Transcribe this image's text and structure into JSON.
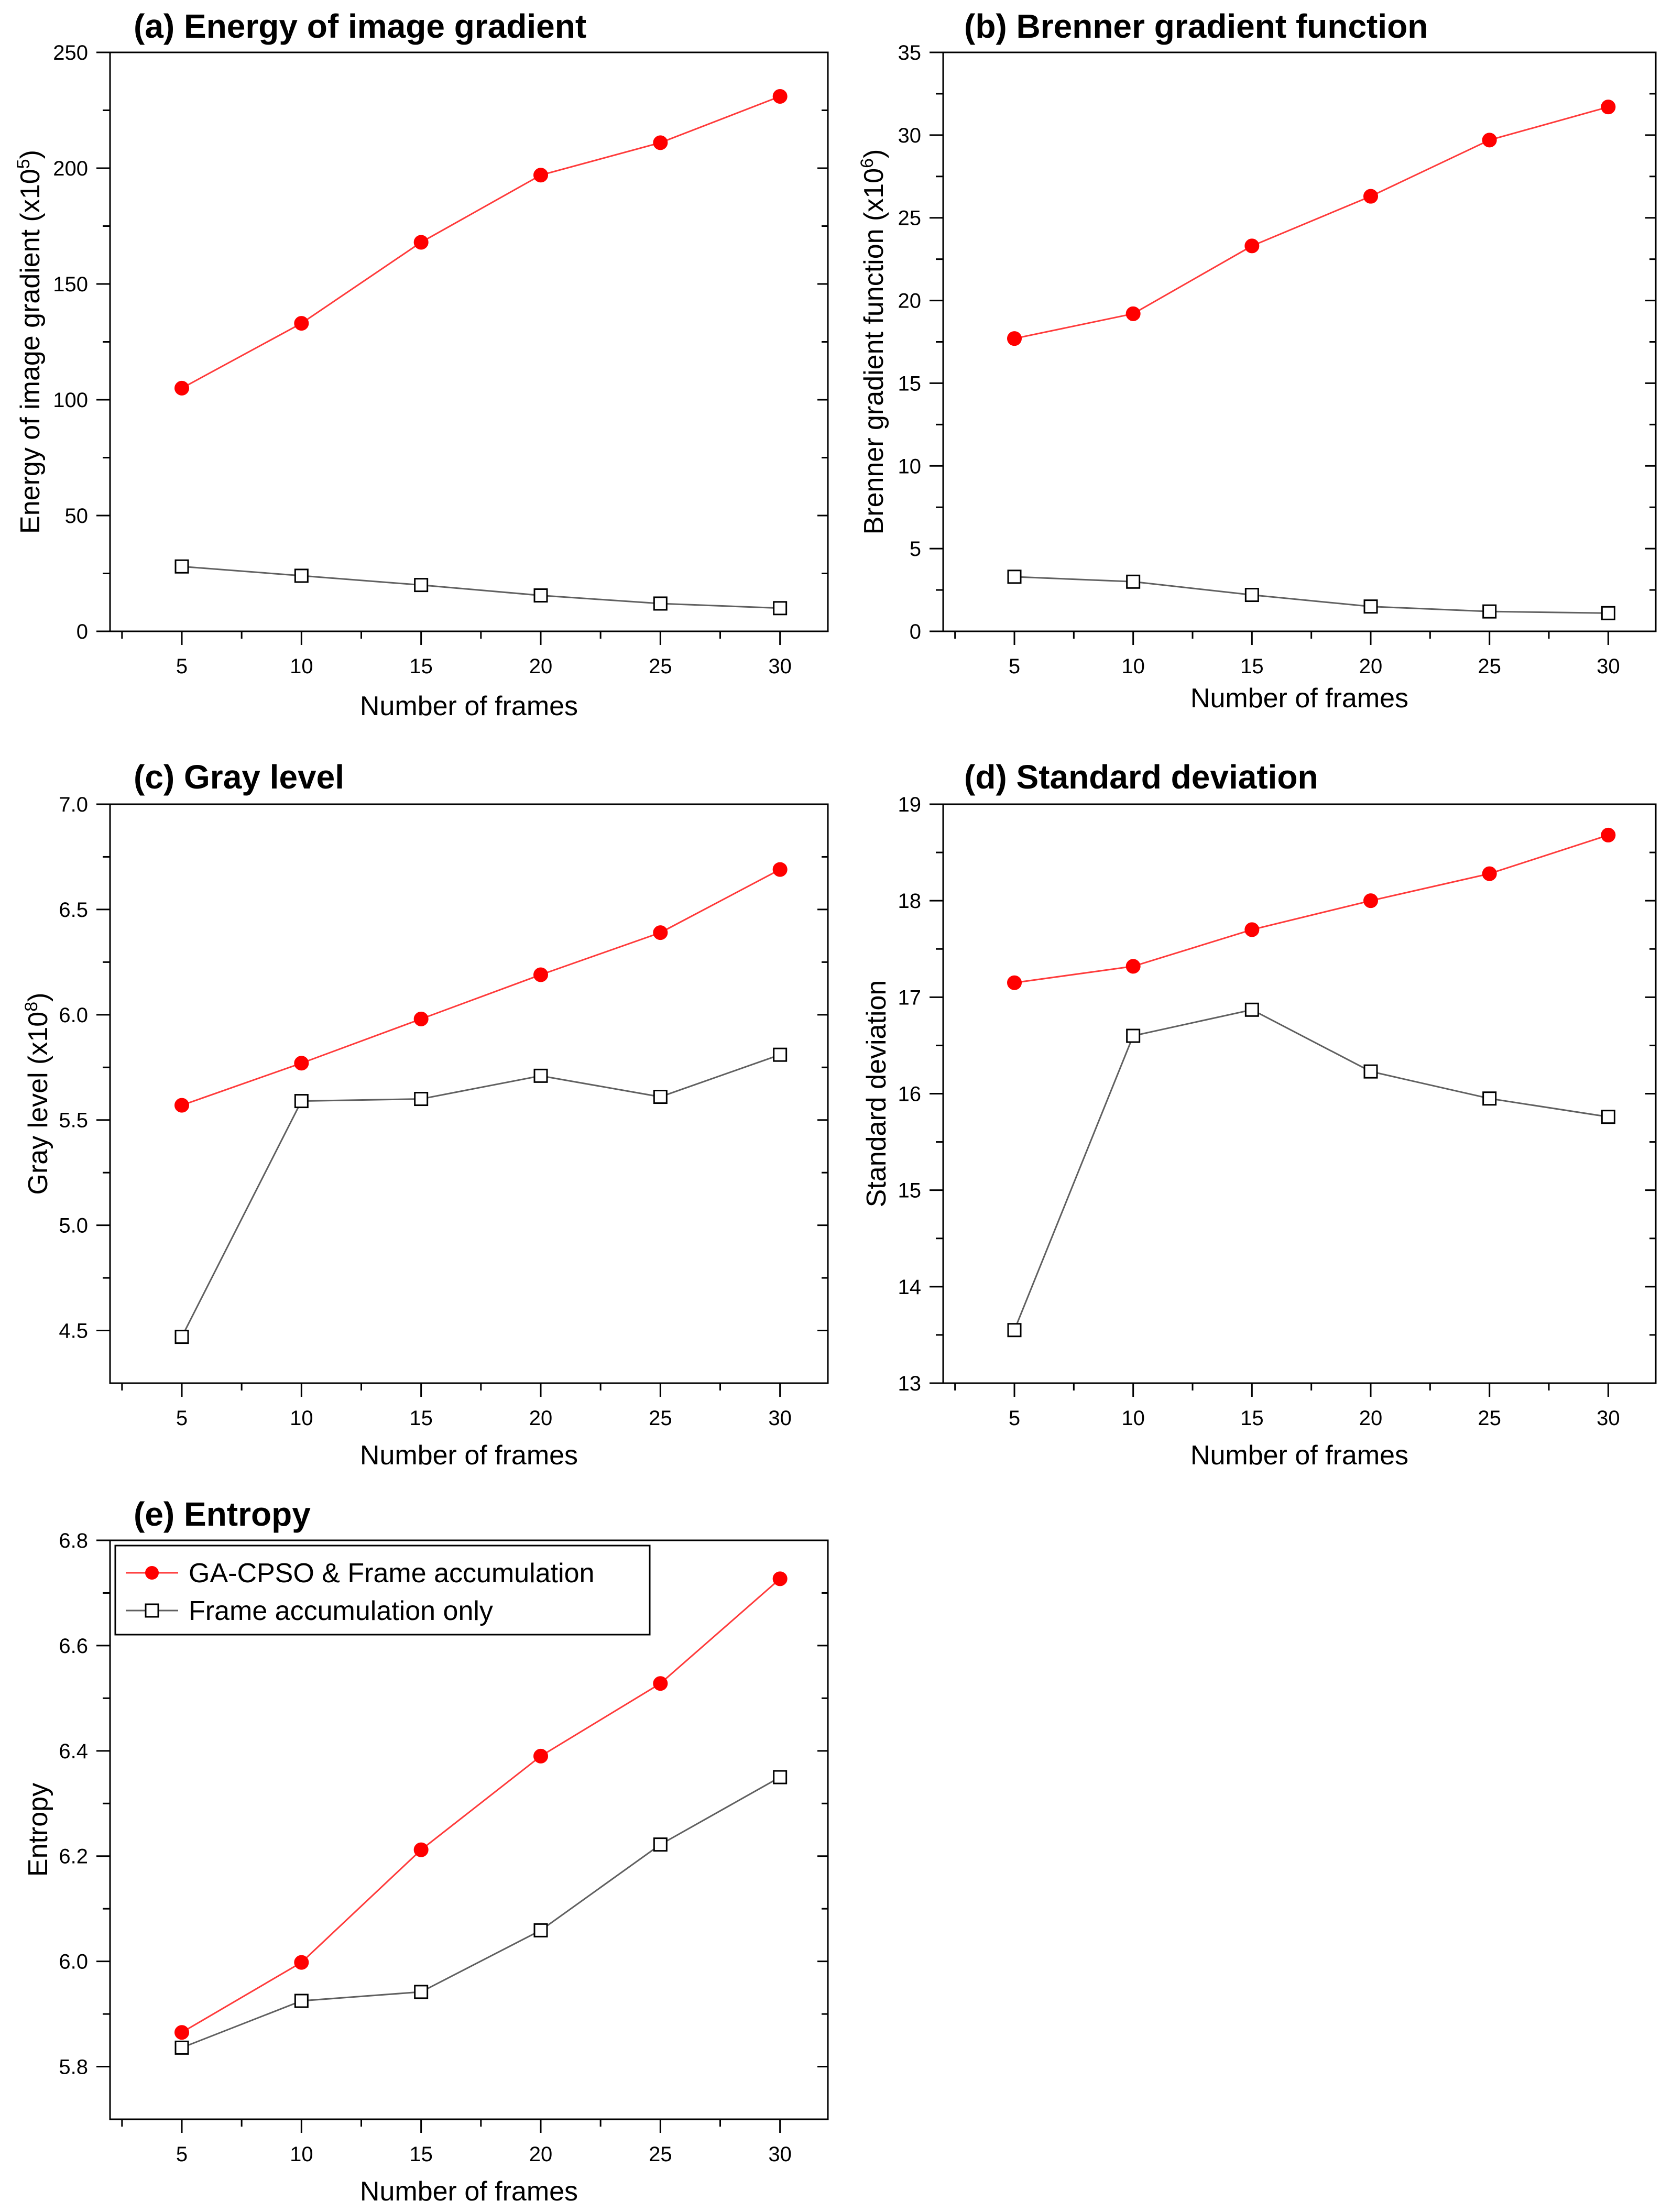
{
  "chart_data": [
    {
      "type": "line",
      "title": "(a) Energy of image gradient",
      "xlabel": "Number of frames",
      "ylabel": "Energy of image gradient (x10",
      "ylabel_exponent": "5",
      "ylabel_tail": ")",
      "x": [
        5,
        10,
        15,
        20,
        25,
        30
      ],
      "xlim": [
        2,
        32
      ],
      "ylim": [
        0,
        250
      ],
      "xticks": [
        5,
        10,
        15,
        20,
        25,
        30
      ],
      "yticks": [
        0,
        50,
        100,
        150,
        200,
        250
      ],
      "series": [
        {
          "name": "GA-CPSO & Frame accumulation",
          "values": [
            105,
            133,
            168,
            197,
            211,
            231
          ]
        },
        {
          "name": "Frame accumulation only",
          "values": [
            28,
            24,
            20,
            15.5,
            12,
            10
          ]
        }
      ]
    },
    {
      "type": "line",
      "title": "(b) Brenner gradient function",
      "xlabel": "Number of frames",
      "ylabel": "Brenner gradient function (x10",
      "ylabel_exponent": "6",
      "ylabel_tail": ")",
      "x": [
        5,
        10,
        15,
        20,
        25,
        30
      ],
      "xlim": [
        2,
        32
      ],
      "ylim": [
        0,
        35
      ],
      "xticks": [
        5,
        10,
        15,
        20,
        25,
        30
      ],
      "yticks": [
        0,
        5,
        10,
        15,
        20,
        25,
        30,
        35
      ],
      "series": [
        {
          "name": "GA-CPSO & Frame accumulation",
          "values": [
            17.7,
            19.2,
            23.3,
            26.3,
            29.7,
            31.7
          ]
        },
        {
          "name": "Frame accumulation only",
          "values": [
            3.3,
            3.0,
            2.2,
            1.5,
            1.2,
            1.1
          ]
        }
      ]
    },
    {
      "type": "line",
      "title": "(c) Gray level",
      "xlabel": "Number of frames",
      "ylabel": "Gray level (x10",
      "ylabel_exponent": "8",
      "ylabel_tail": ")",
      "x": [
        5,
        10,
        15,
        20,
        25,
        30
      ],
      "xlim": [
        2,
        32
      ],
      "ylim": [
        4.25,
        7.0
      ],
      "xticks": [
        5,
        10,
        15,
        20,
        25,
        30
      ],
      "yticks": [
        4.5,
        5.0,
        5.5,
        6.0,
        6.5,
        7.0
      ],
      "ytick_labels": [
        "4.5",
        "5.0",
        "5.5",
        "6.0",
        "6.5",
        "7.0"
      ],
      "series": [
        {
          "name": "GA-CPSO & Frame accumulation",
          "values": [
            5.57,
            5.77,
            5.98,
            6.19,
            6.39,
            6.69
          ]
        },
        {
          "name": "Frame accumulation only",
          "values": [
            4.47,
            5.59,
            5.6,
            5.71,
            5.61,
            5.81
          ]
        }
      ]
    },
    {
      "type": "line",
      "title": "(d) Standard deviation",
      "xlabel": "Number of frames",
      "ylabel": "Standard deviation",
      "ylabel_exponent": "",
      "ylabel_tail": "",
      "x": [
        5,
        10,
        15,
        20,
        25,
        30
      ],
      "xlim": [
        2,
        32
      ],
      "ylim": [
        13,
        19
      ],
      "xticks": [
        5,
        10,
        15,
        20,
        25,
        30
      ],
      "yticks": [
        13,
        14,
        15,
        16,
        17,
        18,
        19
      ],
      "series": [
        {
          "name": "GA-CPSO & Frame accumulation",
          "values": [
            17.15,
            17.32,
            17.7,
            18.0,
            18.28,
            18.68
          ]
        },
        {
          "name": "Frame accumulation only",
          "values": [
            13.55,
            16.6,
            16.87,
            16.23,
            15.95,
            15.76
          ]
        }
      ]
    },
    {
      "type": "line",
      "title": "(e) Entropy",
      "xlabel": "Number of frames",
      "ylabel": "Entropy",
      "ylabel_exponent": "",
      "ylabel_tail": "",
      "x": [
        5,
        10,
        15,
        20,
        25,
        30
      ],
      "xlim": [
        2,
        32
      ],
      "ylim": [
        5.7,
        6.8
      ],
      "xticks": [
        5,
        10,
        15,
        20,
        25,
        30
      ],
      "yticks": [
        5.8,
        6.0,
        6.2,
        6.4,
        6.6,
        6.8
      ],
      "ytick_labels": [
        "5.8",
        "6.0",
        "6.2",
        "6.4",
        "6.6",
        "6.8"
      ],
      "legend_position": "top-left",
      "series": [
        {
          "name": "GA-CPSO & Frame accumulation",
          "values": [
            5.865,
            5.998,
            6.212,
            6.39,
            6.528,
            6.727
          ]
        },
        {
          "name": "Frame accumulation only",
          "values": [
            5.836,
            5.925,
            5.942,
            6.059,
            6.222,
            6.35
          ]
        }
      ]
    }
  ],
  "styles": {
    "series_colors": [
      "#ff0000",
      "#000000"
    ],
    "series_line_colors": [
      "#ff3b3b",
      "#606060"
    ],
    "series_markers": [
      "filled-circle",
      "open-square"
    ]
  },
  "legend": {
    "items": [
      {
        "label": "GA-CPSO & Frame accumulation",
        "marker": "filled-circle"
      },
      {
        "label": "Frame accumulation only",
        "marker": "open-square"
      }
    ]
  }
}
